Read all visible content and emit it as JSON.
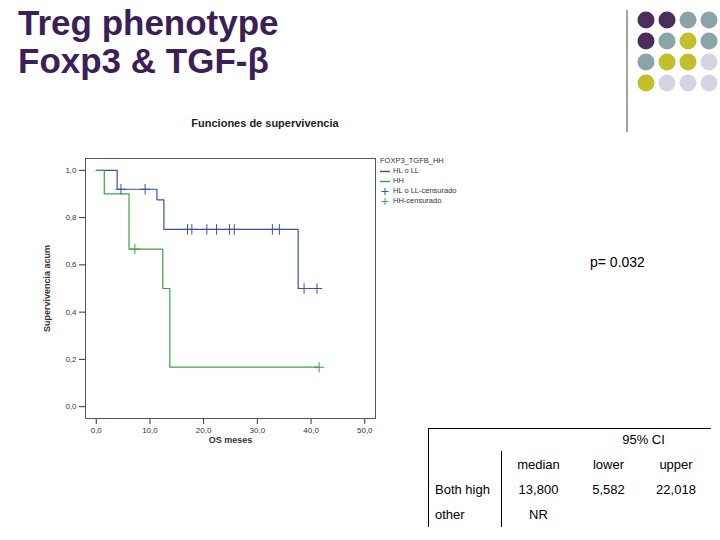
{
  "heading": [
    "Treg phenotype",
    "Foxp3 & TGF-β"
  ],
  "chart_data": {
    "type": "step",
    "title": "Funciones de supervivencia",
    "x_label": "OS meses",
    "y_label": "Supervivencia acum",
    "legend_title": "FOXP3_TGFB_HH",
    "annotations": [
      "p= 0.032"
    ],
    "xlim": [
      -2,
      52
    ],
    "xticks": [
      {
        "value": 0,
        "label": "0,0"
      },
      {
        "value": 10,
        "label": "10,0"
      },
      {
        "value": 20,
        "label": "20,0"
      },
      {
        "value": 30,
        "label": "30,0"
      },
      {
        "value": 40,
        "label": "40,0"
      },
      {
        "value": 50,
        "label": "50,0"
      }
    ],
    "ylim": [
      -0.05,
      1.05
    ],
    "yticks": [
      {
        "value": 0,
        "label": "0,0"
      },
      {
        "value": 0.2,
        "label": "0,2"
      },
      {
        "value": 0.4,
        "label": "0,4"
      },
      {
        "value": 0.6,
        "label": "0,6"
      },
      {
        "value": 0.8,
        "label": "0,8"
      },
      {
        "value": 1,
        "label": "1,0"
      }
    ],
    "grid": false,
    "legend": "right",
    "series": [
      {
        "name": "HL o LL",
        "type": "step",
        "color": "#3c52a4",
        "line_style": "solid",
        "x": [
          0,
          3.9,
          11.3,
          12.6,
          37.6,
          41.1
        ],
        "values": [
          1,
          0.92,
          0.875,
          0.75,
          0.5,
          0.5
        ]
      },
      {
        "name": "HH",
        "type": "step",
        "color": "#3aa64a",
        "line_style": "solid",
        "x": [
          0,
          1.5,
          6.1,
          12.4,
          13.7,
          41.5
        ],
        "values": [
          1,
          0.9,
          0.667,
          0.5,
          0.167,
          0.167
        ]
      },
      {
        "name": "HL o LL-censurado",
        "type": "scatter",
        "color": "#3c52a4",
        "marker": "plus",
        "x": [
          4.6,
          9.1,
          17.0,
          17.8,
          20.6,
          22.4,
          24.8,
          25.7,
          32.8,
          34.1,
          38.7,
          41.1
        ],
        "values": [
          0.92,
          0.92,
          0.75,
          0.75,
          0.75,
          0.75,
          0.75,
          0.75,
          0.75,
          0.75,
          0.5,
          0.5
        ]
      },
      {
        "name": "HH-censurado",
        "type": "scatter",
        "color": "#3aa64a",
        "marker": "plus",
        "x": [
          7.2,
          41.5
        ],
        "values": [
          0.667,
          0.167
        ]
      }
    ]
  },
  "table": {
    "group_header": "95% CI",
    "columns": [
      "median",
      "lower",
      "upper"
    ],
    "rows": [
      [
        "Both high",
        "13,800",
        "5,582",
        "22,018"
      ],
      [
        "other",
        "NR"
      ]
    ]
  }
}
